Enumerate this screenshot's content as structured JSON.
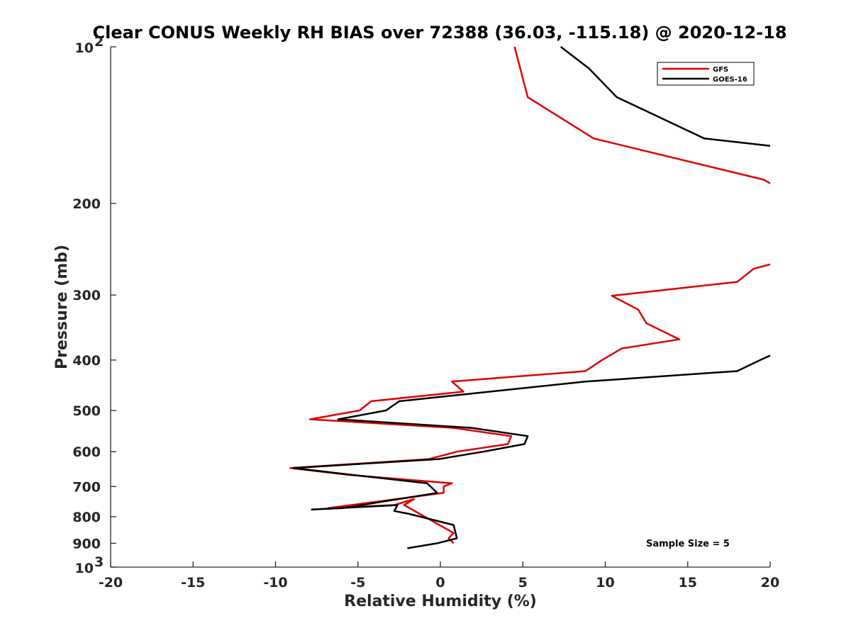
{
  "chart_data": {
    "type": "line",
    "title": "Clear CONUS Weekly RH BIAS over 72388 (36.03, -115.18) @ 2020-12-18",
    "xlabel": "Relative Humidity (%)",
    "ylabel": "Pressure (mb)",
    "xlim": [
      -20,
      20
    ],
    "ylim": [
      100,
      1000
    ],
    "y_scale": "log",
    "y_reversed": true,
    "grid": false,
    "legend_position": "top-right",
    "x_ticks": [
      -20,
      -15,
      -10,
      -5,
      0,
      5,
      10,
      15,
      20
    ],
    "x_tick_labels": [
      "-20",
      "-15",
      "-10",
      "-5",
      "0",
      "5",
      "10",
      "15",
      "20"
    ],
    "y_ticks": [
      100,
      200,
      300,
      400,
      500,
      600,
      700,
      800,
      900,
      1000
    ],
    "y_tick_labels": [
      {
        "base": "10",
        "exp": "2"
      },
      {
        "base": "200",
        "exp": ""
      },
      {
        "base": "300",
        "exp": ""
      },
      {
        "base": "400",
        "exp": ""
      },
      {
        "base": "500",
        "exp": ""
      },
      {
        "base": "600",
        "exp": ""
      },
      {
        "base": "700",
        "exp": ""
      },
      {
        "base": "800",
        "exp": ""
      },
      {
        "base": "900",
        "exp": ""
      },
      {
        "base": "10",
        "exp": "3"
      }
    ],
    "annotation": "Sample Size = 5",
    "series": [
      {
        "name": "GFS",
        "color": "#e00000",
        "segments": [
          {
            "x": [
              4.5,
              5.3,
              9.3,
              19.6,
              20.0
            ],
            "y": [
              100,
              125,
              150,
              180,
              183
            ]
          },
          {
            "x": [
              20.0,
              19.0,
              18.0,
              10.4,
              12.0,
              12.5,
              14.5,
              11.0,
              9.8,
              8.8,
              0.7,
              1.4,
              -4.2,
              -4.9,
              -7.9,
              0.8,
              4.3,
              4.1,
              1.0,
              -0.7,
              -9.1,
              -5.5,
              0.7,
              0.2,
              0.2,
              -6.8,
              -2.8,
              -1.6,
              -2.2,
              0.8,
              0.5,
              0.8
            ],
            "y": [
              262,
              267,
              283,
              301,
              320,
              340,
              365,
              380,
              400,
              420,
              440,
              460,
              480,
              500,
              520,
              540,
              560,
              580,
              600,
              620,
              645,
              665,
              690,
              700,
              720,
              770,
              760,
              740,
              760,
              860,
              880,
              900
            ]
          }
        ]
      },
      {
        "name": "GOES-16",
        "color": "#000000",
        "segments": [
          {
            "x": [
              7.3,
              9.0,
              10.7,
              16.0,
              20.0
            ],
            "y": [
              100,
              110,
              125,
              150,
              155
            ]
          },
          {
            "x": [
              20.0,
              19.4,
              18.0,
              8.8,
              -2.5,
              -3.3,
              -6.2,
              1.9,
              5.3,
              5.1,
              2.6,
              -0.1,
              -8.9,
              -5.3,
              -0.8,
              -0.6,
              -0.2,
              -5.9,
              -7.8,
              -2.6,
              -2.8,
              -1.9,
              0.8,
              1.0,
              -0.2,
              -2.0
            ],
            "y": [
              392,
              400,
              420,
              440,
              480,
              500,
              520,
              540,
              560,
              580,
              600,
              620,
              645,
              665,
              690,
              700,
              720,
              770,
              775,
              760,
              780,
              790,
              830,
              880,
              900,
              920
            ]
          }
        ]
      }
    ]
  }
}
